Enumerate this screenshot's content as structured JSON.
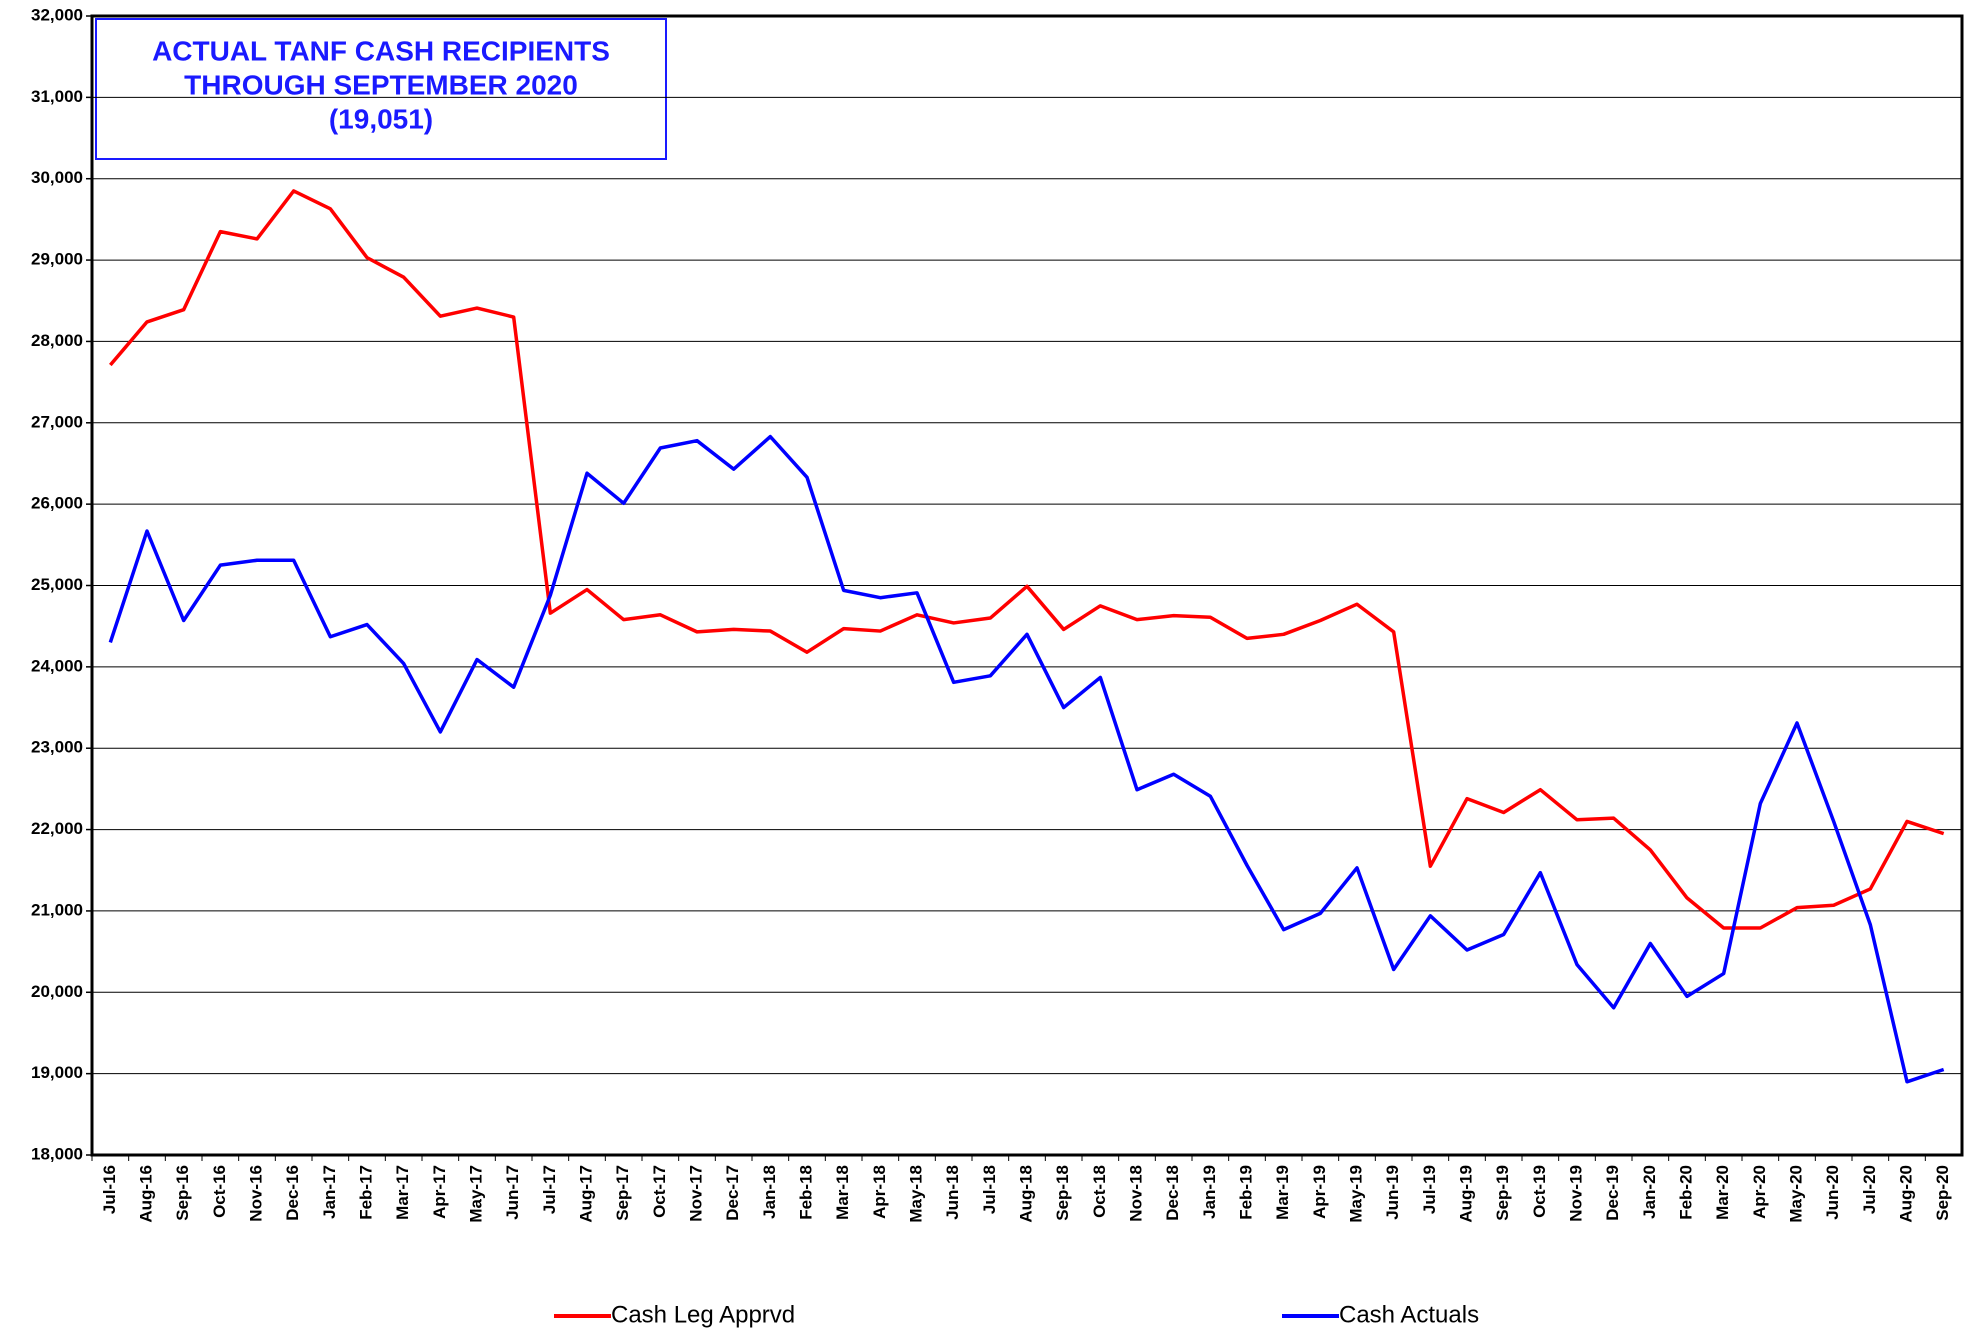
{
  "chart_data": {
    "type": "line",
    "title": [
      "ACTUAL TANF CASH RECIPIENTS",
      "THROUGH SEPTEMBER 2020",
      "(19,051)"
    ],
    "categories": [
      "Jul-16",
      "Aug-16",
      "Sep-16",
      "Oct-16",
      "Nov-16",
      "Dec-16",
      "Jan-17",
      "Feb-17",
      "Mar-17",
      "Apr-17",
      "May-17",
      "Jun-17",
      "Jul-17",
      "Aug-17",
      "Sep-17",
      "Oct-17",
      "Nov-17",
      "Dec-17",
      "Jan-18",
      "Feb-18",
      "Mar-18",
      "Apr-18",
      "May-18",
      "Jun-18",
      "Jul-18",
      "Aug-18",
      "Sep-18",
      "Oct-18",
      "Nov-18",
      "Dec-18",
      "Jan-19",
      "Feb-19",
      "Mar-19",
      "Apr-19",
      "May-19",
      "Jun-19",
      "Jul-19",
      "Aug-19",
      "Sep-19",
      "Oct-19",
      "Nov-19",
      "Dec-19",
      "Jan-20",
      "Feb-20",
      "Mar-20",
      "Apr-20",
      "May-20",
      "Jun-20",
      "Jul-20",
      "Aug-20",
      "Sep-20"
    ],
    "series": [
      {
        "name": "Cash Leg Apprvd",
        "color": "#ff0000",
        "values": [
          27710,
          28240,
          28390,
          29350,
          29260,
          29850,
          29630,
          29030,
          28790,
          28310,
          28410,
          28300,
          24660,
          24950,
          24580,
          24640,
          24430,
          24460,
          24440,
          24180,
          24470,
          24440,
          24640,
          24540,
          24600,
          24990,
          24460,
          24750,
          24580,
          24630,
          24610,
          24350,
          24400,
          24570,
          24770,
          24430,
          21550,
          22380,
          22210,
          22490,
          22120,
          22140,
          21750,
          21160,
          20790,
          20790,
          21040,
          21070,
          21270,
          22100,
          21950
        ]
      },
      {
        "name": "Cash Actuals",
        "color": "#0000ff",
        "values": [
          24300,
          25670,
          24570,
          25250,
          25310,
          25310,
          24370,
          24520,
          24040,
          23200,
          24090,
          23750,
          24880,
          26380,
          26010,
          26690,
          26780,
          26430,
          26830,
          26330,
          24940,
          24850,
          24910,
          23810,
          23890,
          24400,
          23500,
          23870,
          22490,
          22680,
          22410,
          21560,
          20770,
          20970,
          21530,
          20280,
          20940,
          20520,
          20710,
          21470,
          20340,
          19810,
          20600,
          19950,
          20230,
          22320,
          23310,
          22100,
          20830,
          18900,
          19051
        ]
      }
    ],
    "ylim": [
      18000,
      32000
    ],
    "yticks": [
      {
        "value": 18000,
        "label": "18,000"
      },
      {
        "value": 19000,
        "label": "19,000"
      },
      {
        "value": 20000,
        "label": "20,000"
      },
      {
        "value": 21000,
        "label": "21,000"
      },
      {
        "value": 22000,
        "label": "22,000"
      },
      {
        "value": 23000,
        "label": "23,000"
      },
      {
        "value": 24000,
        "label": "24,000"
      },
      {
        "value": 25000,
        "label": "25,000"
      },
      {
        "value": 26000,
        "label": "26,000"
      },
      {
        "value": 27000,
        "label": "27,000"
      },
      {
        "value": 28000,
        "label": "28,000"
      },
      {
        "value": 29000,
        "label": "29,000"
      },
      {
        "value": 30000,
        "label": "30,000"
      },
      {
        "value": 31000,
        "label": "31,000"
      },
      {
        "value": 32000,
        "label": "32,000"
      }
    ],
    "grid": true
  }
}
